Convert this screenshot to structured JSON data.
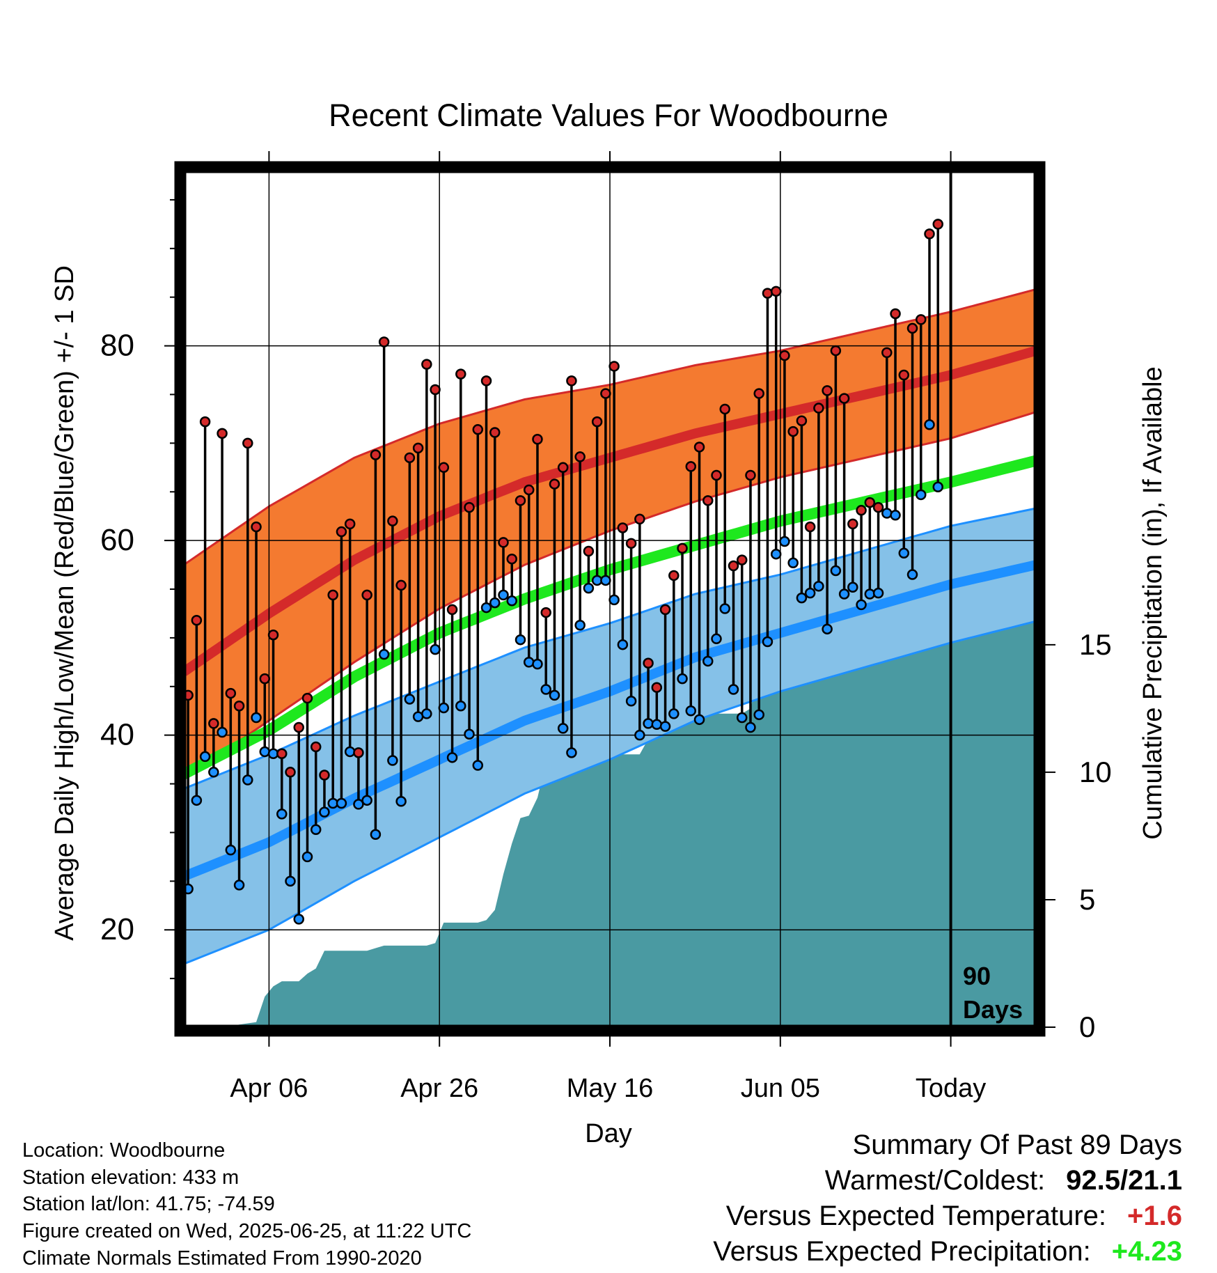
{
  "chart_data": {
    "type": "line",
    "title": "Recent Climate Values For Woodbourne",
    "xlabel": "Day",
    "ylabel": "Average Daily High/Low/Mean (Red/Blue/Green) +/- 1 SD",
    "y2label": "Cumulative Precipitation (in), If Available",
    "xtick_labels": [
      "Apr 06",
      "Apr 26",
      "May 16",
      "Jun 05",
      "Today"
    ],
    "xtick_day": [
      10,
      30,
      50,
      70,
      90
    ],
    "xlim": [
      0,
      100
    ],
    "ylim": [
      10,
      98
    ],
    "yticks": [
      20,
      40,
      60,
      80
    ],
    "y2ticks": [
      0,
      5,
      10,
      15
    ],
    "y2lim": [
      0,
      33.6
    ],
    "marker_label": "90 Days",
    "grid": true,
    "colors": {
      "high": "#d42a2a",
      "high_band": "#f47a30",
      "low": "#1e90ff",
      "low_band": "#85c1e8",
      "mean": "#1ee81e",
      "precip": "#4a9aa2"
    },
    "normals": {
      "day": [
        0,
        10,
        20,
        30,
        40,
        50,
        60,
        70,
        80,
        90,
        100
      ],
      "high": [
        46.5,
        52.5,
        58,
        62.5,
        66,
        68.5,
        71,
        73,
        75,
        77,
        79.5
      ],
      "high_sd": [
        11,
        11,
        10.5,
        9.5,
        8.5,
        7.5,
        7,
        6.5,
        6.5,
        6.5,
        6.3
      ],
      "low": [
        25.5,
        29,
        33.5,
        37.5,
        41.5,
        44.5,
        48,
        50.5,
        53,
        55.5,
        57.5
      ],
      "low_sd": [
        9,
        9,
        8.5,
        8,
        7.5,
        7,
        6.5,
        6,
        6,
        6,
        5.8
      ],
      "mean": [
        36,
        40.5,
        46,
        50.5,
        54,
        57,
        59.5,
        62,
        64,
        66,
        68.2
      ]
    },
    "series": [
      {
        "name": "High",
        "values": [
          44.1,
          51.8,
          72.2,
          41.2,
          71.0,
          44.3,
          43.0,
          70.0,
          61.4,
          45.8,
          50.3,
          38.1,
          36.2,
          40.8,
          43.8,
          38.8,
          35.9,
          54.4,
          60.9,
          61.7,
          38.2,
          54.4,
          68.8,
          80.4,
          62.0,
          55.4,
          68.5,
          69.5,
          78.1,
          75.5,
          67.5,
          52.9,
          77.1,
          63.4,
          71.4,
          76.4,
          71.1,
          59.8,
          58.1,
          64.1,
          65.2,
          70.4,
          52.6,
          65.8,
          67.5,
          76.4,
          68.6,
          58.9,
          72.2,
          75.1,
          77.9,
          61.3,
          59.7,
          62.2,
          47.4,
          44.9,
          52.9,
          56.4,
          59.2,
          67.6,
          69.6,
          64.1,
          66.7,
          73.5,
          57.4,
          58.0,
          66.7,
          75.1,
          85.4,
          85.6,
          79.0,
          71.2,
          72.3,
          61.4,
          73.6,
          75.4,
          79.5,
          74.6,
          61.7,
          63.1,
          63.9,
          63.4,
          79.3,
          83.3,
          77.0,
          81.8,
          82.7,
          91.5,
          92.5
        ]
      },
      {
        "name": "Low",
        "values": [
          24.2,
          33.3,
          37.8,
          36.2,
          40.3,
          28.2,
          24.6,
          35.4,
          41.8,
          38.3,
          38.1,
          31.9,
          25.0,
          21.1,
          27.5,
          30.3,
          32.1,
          33.0,
          33.0,
          38.3,
          32.9,
          33.3,
          29.8,
          48.3,
          37.4,
          33.2,
          43.7,
          41.9,
          42.2,
          48.8,
          42.8,
          37.7,
          43.0,
          40.1,
          36.9,
          53.1,
          53.6,
          54.4,
          53.8,
          49.8,
          47.5,
          47.3,
          44.7,
          44.1,
          40.7,
          38.2,
          51.3,
          55.1,
          55.9,
          55.9,
          53.9,
          49.3,
          43.5,
          40.0,
          41.2,
          41.1,
          40.9,
          42.2,
          45.8,
          42.5,
          41.6,
          47.6,
          49.9,
          53.0,
          44.7,
          41.8,
          40.8,
          42.1,
          49.6,
          58.6,
          59.9,
          57.7,
          54.1,
          54.6,
          55.3,
          50.9,
          56.9,
          54.5,
          55.2,
          53.4,
          54.5,
          54.6,
          62.8,
          62.6,
          58.7,
          56.5,
          64.7,
          71.9,
          65.5
        ]
      },
      {
        "name": "Precipitation",
        "values": [
          0,
          0,
          0,
          0,
          0.05,
          0.05,
          0.1,
          0.15,
          0.2,
          1.2,
          1.6,
          1.8,
          1.8,
          1.8,
          2.1,
          2.3,
          3.0,
          3.0,
          3.0,
          3.0,
          3.0,
          3.0,
          3.1,
          3.2,
          3.2,
          3.2,
          3.2,
          3.2,
          3.2,
          3.3,
          4.1,
          4.1,
          4.1,
          4.1,
          4.1,
          4.2,
          4.6,
          6.0,
          7.2,
          8.2,
          8.3,
          9.0,
          10.4,
          10.4,
          10.4,
          10.4,
          10.4,
          10.6,
          10.7,
          10.7,
          10.7,
          10.7,
          10.7,
          10.7,
          11.3,
          12.0,
          12.1,
          12.2,
          12.2,
          12.2,
          12.2,
          12.3,
          12.3,
          12.3,
          12.3,
          12.3,
          12.5,
          13.9,
          13.9,
          13.9,
          13.9,
          14.0,
          14.2,
          14.3,
          14.8,
          15.5,
          15.6,
          15.8,
          15.8,
          15.8,
          15.9,
          16.1,
          16.5,
          16.7,
          16.8,
          16.9,
          16.9,
          16.8,
          16.8
        ]
      }
    ]
  },
  "info": {
    "location": "Location: Woodbourne",
    "elevation": "Station elevation: 433 m",
    "latlon": "Station lat/lon: 41.75; -74.59",
    "created": "Figure created on Wed, 2025-06-25, at 11:22 UTC",
    "normals": "Climate Normals Estimated From 1990-2020"
  },
  "summary": {
    "title": "Summary Of Past 89 Days",
    "warmest_label": "Warmest/Coldest:",
    "warmest_value": "92.5/21.1",
    "temp_label": "Versus Expected Temperature:",
    "temp_value": "+1.6",
    "temp_color": "#d42a2a",
    "precip_label": "Versus Expected Precipitation:",
    "precip_value": "+4.23",
    "precip_color": "#1ee81e"
  }
}
